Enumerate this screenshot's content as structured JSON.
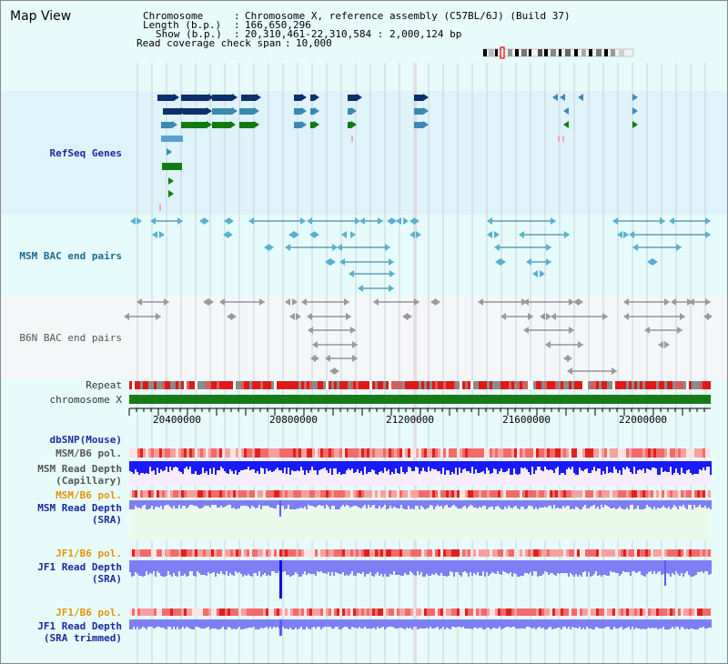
{
  "window": {
    "title": "Map View"
  },
  "header": {
    "chromosome_key": "Chromosome",
    "chromosome_val": "Chromosome X, reference assembly (C57BL/6J) (Build 37)",
    "length_key": "Length (b.p.)",
    "length_val": "166,650,296",
    "show_key": "Show (b.p.)",
    "show_val": "20,310,461-22,310,584 : 2,000,124 bp",
    "span_key": "Read coverage check span",
    "span_val": "10,000"
  },
  "tracks": {
    "refseq": "RefSeq Genes",
    "msm_bac": "MSM BAC end pairs",
    "b6n_bac": "B6N BAC end pairs",
    "repeat": "Repeat",
    "chromosome": "chromosome X",
    "dbsnp": "dbSNP(Mouse)",
    "msm_b6_pol_1": "MSM/B6 pol.",
    "msm_depth_cap_1": "MSM Read Depth",
    "msm_depth_cap_2": "(Capillary)",
    "msm_b6_pol_2": "MSM/B6 pol.",
    "msm_depth_sra_1": "MSM Read Depth",
    "msm_depth_sra_2": "(SRA)",
    "jf1_b6_pol_1": "JF1/B6 pol.",
    "jf1_depth_sra_1": "JF1 Read Depth",
    "jf1_depth_sra_2": "(SRA)",
    "jf1_b6_pol_2": "JF1/B6 pol.",
    "jf1_depth_trim_1": "JF1 Read Depth",
    "jf1_depth_trim_2": "(SRA trimmed)"
  },
  "axis": {
    "ticks": [
      "20400000",
      "20800000",
      "21200000",
      "21600000",
      "22000000"
    ]
  },
  "colors": {
    "refseq_bg": "#dff3fb",
    "msm_bg": "#e4fbfb",
    "b6n_bg": "#f4f6f8",
    "chromosome_bar": "#177a17",
    "depth_blue": "#1a1aff",
    "depth_light": "#7f7ff5",
    "pol_red": "#ee3333",
    "gene_dark": "#0d2f6b",
    "gene_mid": "#3b89b0",
    "gene_green": "#127a12"
  }
}
